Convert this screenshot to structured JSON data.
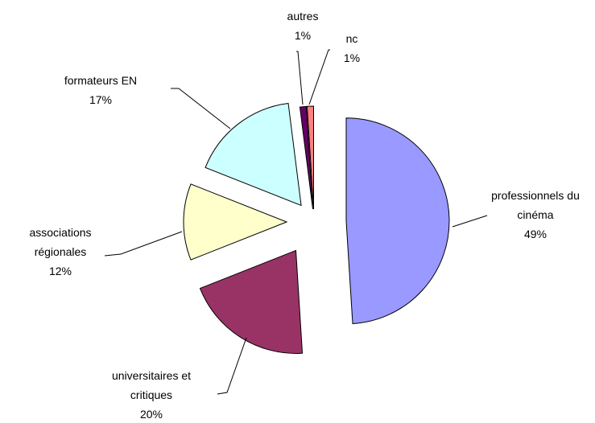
{
  "chart_data": {
    "type": "pie",
    "start": "top",
    "direction": "clockwise",
    "exploded": true,
    "categories": [
      "professionnels du cinéma",
      "universitaires et critiques",
      "associations régionales",
      "formateurs EN",
      "autres",
      "nc"
    ],
    "values": [
      49,
      20,
      12,
      17,
      1,
      1
    ],
    "value_labels": [
      "49%",
      "20%",
      "12%",
      "17%",
      "1%",
      "1%"
    ],
    "colors": [
      "#9999ff",
      "#993366",
      "#ffffcc",
      "#ccffff",
      "#660066",
      "#ff8080"
    ]
  }
}
